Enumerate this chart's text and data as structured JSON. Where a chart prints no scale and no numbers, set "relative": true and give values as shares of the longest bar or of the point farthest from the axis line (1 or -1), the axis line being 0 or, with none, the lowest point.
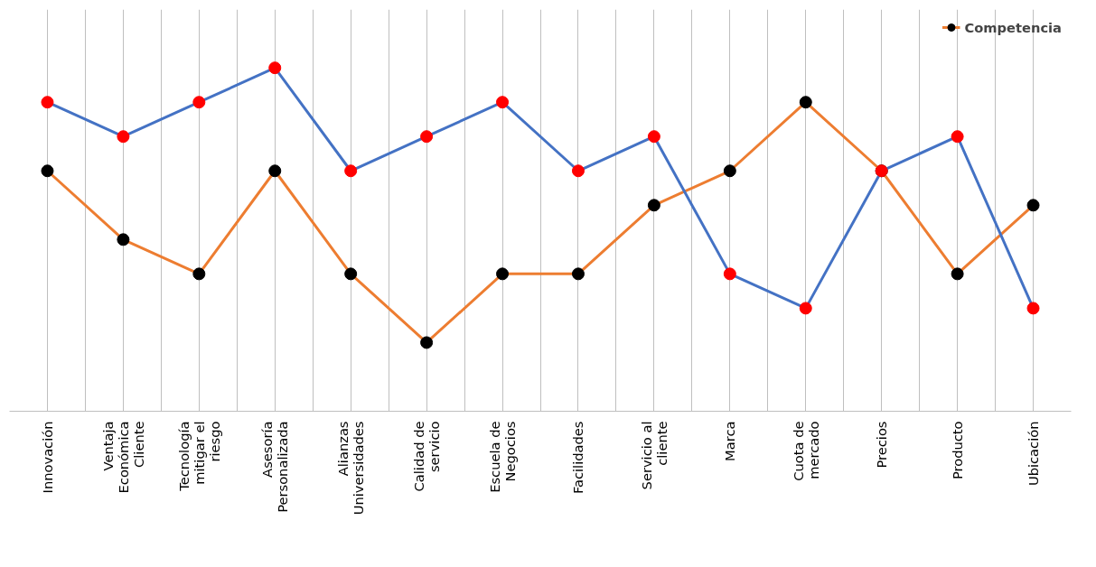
{
  "chart_data": {
    "type": "line",
    "relative": true,
    "categories": [
      "Innovación",
      "Ventaja Económica Cliente",
      "Tecnología mitigar el riesgo",
      "Asesoría Personalizada",
      "Alianzas Universidades",
      "Calidad de servicio",
      "Escuela de Negocios",
      "Facilidades",
      "Servicio al cliente",
      "Marca",
      "Cuota de mercado",
      "Precios",
      "Producto",
      "Ubicación"
    ],
    "series": [
      {
        "name": "Competencia",
        "color": "#ed7d31",
        "values": [
          0.7,
          0.5,
          0.4,
          0.7,
          0.4,
          0.2,
          0.4,
          0.4,
          0.6,
          0.7,
          0.9,
          0.7,
          0.4,
          0.6
        ]
      },
      {
        "color": "#4472c4",
        "values": [
          0.9,
          0.8,
          0.9,
          1.0,
          0.7,
          0.8,
          0.9,
          0.7,
          0.8,
          0.4,
          0.3,
          0.7,
          0.8,
          0.3
        ]
      }
    ],
    "grid": "x",
    "legend": "top right",
    "marker": "circle",
    "line_style": "solid"
  }
}
